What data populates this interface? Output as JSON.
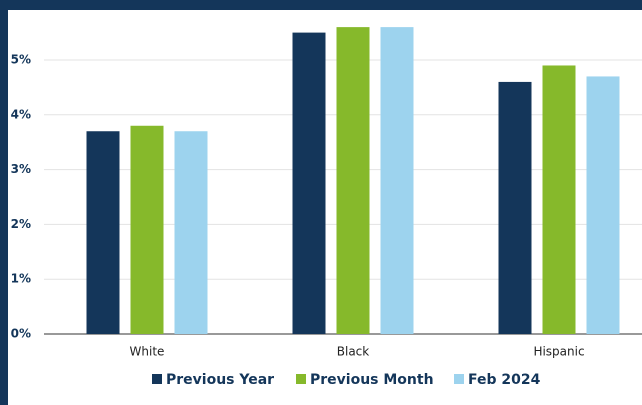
{
  "chart_data": {
    "type": "bar",
    "categories": [
      "White",
      "Black",
      "Hispanic"
    ],
    "series": [
      {
        "name": "Previous Year",
        "color": "#14365a",
        "values": [
          3.7,
          5.5,
          4.6
        ]
      },
      {
        "name": "Previous Month",
        "color": "#86b92b",
        "values": [
          3.8,
          5.6,
          4.9
        ]
      },
      {
        "name": "Feb 2024",
        "color": "#9dd3ee",
        "values": [
          3.7,
          5.6,
          4.7
        ]
      }
    ],
    "ylim": [
      0,
      6
    ],
    "yticks": [
      {
        "value": 0,
        "label": "0%"
      },
      {
        "value": 1,
        "label": "1%"
      },
      {
        "value": 2,
        "label": "2%"
      },
      {
        "value": 3,
        "label": "3%"
      },
      {
        "value": 4,
        "label": "4%"
      },
      {
        "value": 5,
        "label": "5%"
      }
    ],
    "grid": true,
    "legend": "bottom"
  }
}
